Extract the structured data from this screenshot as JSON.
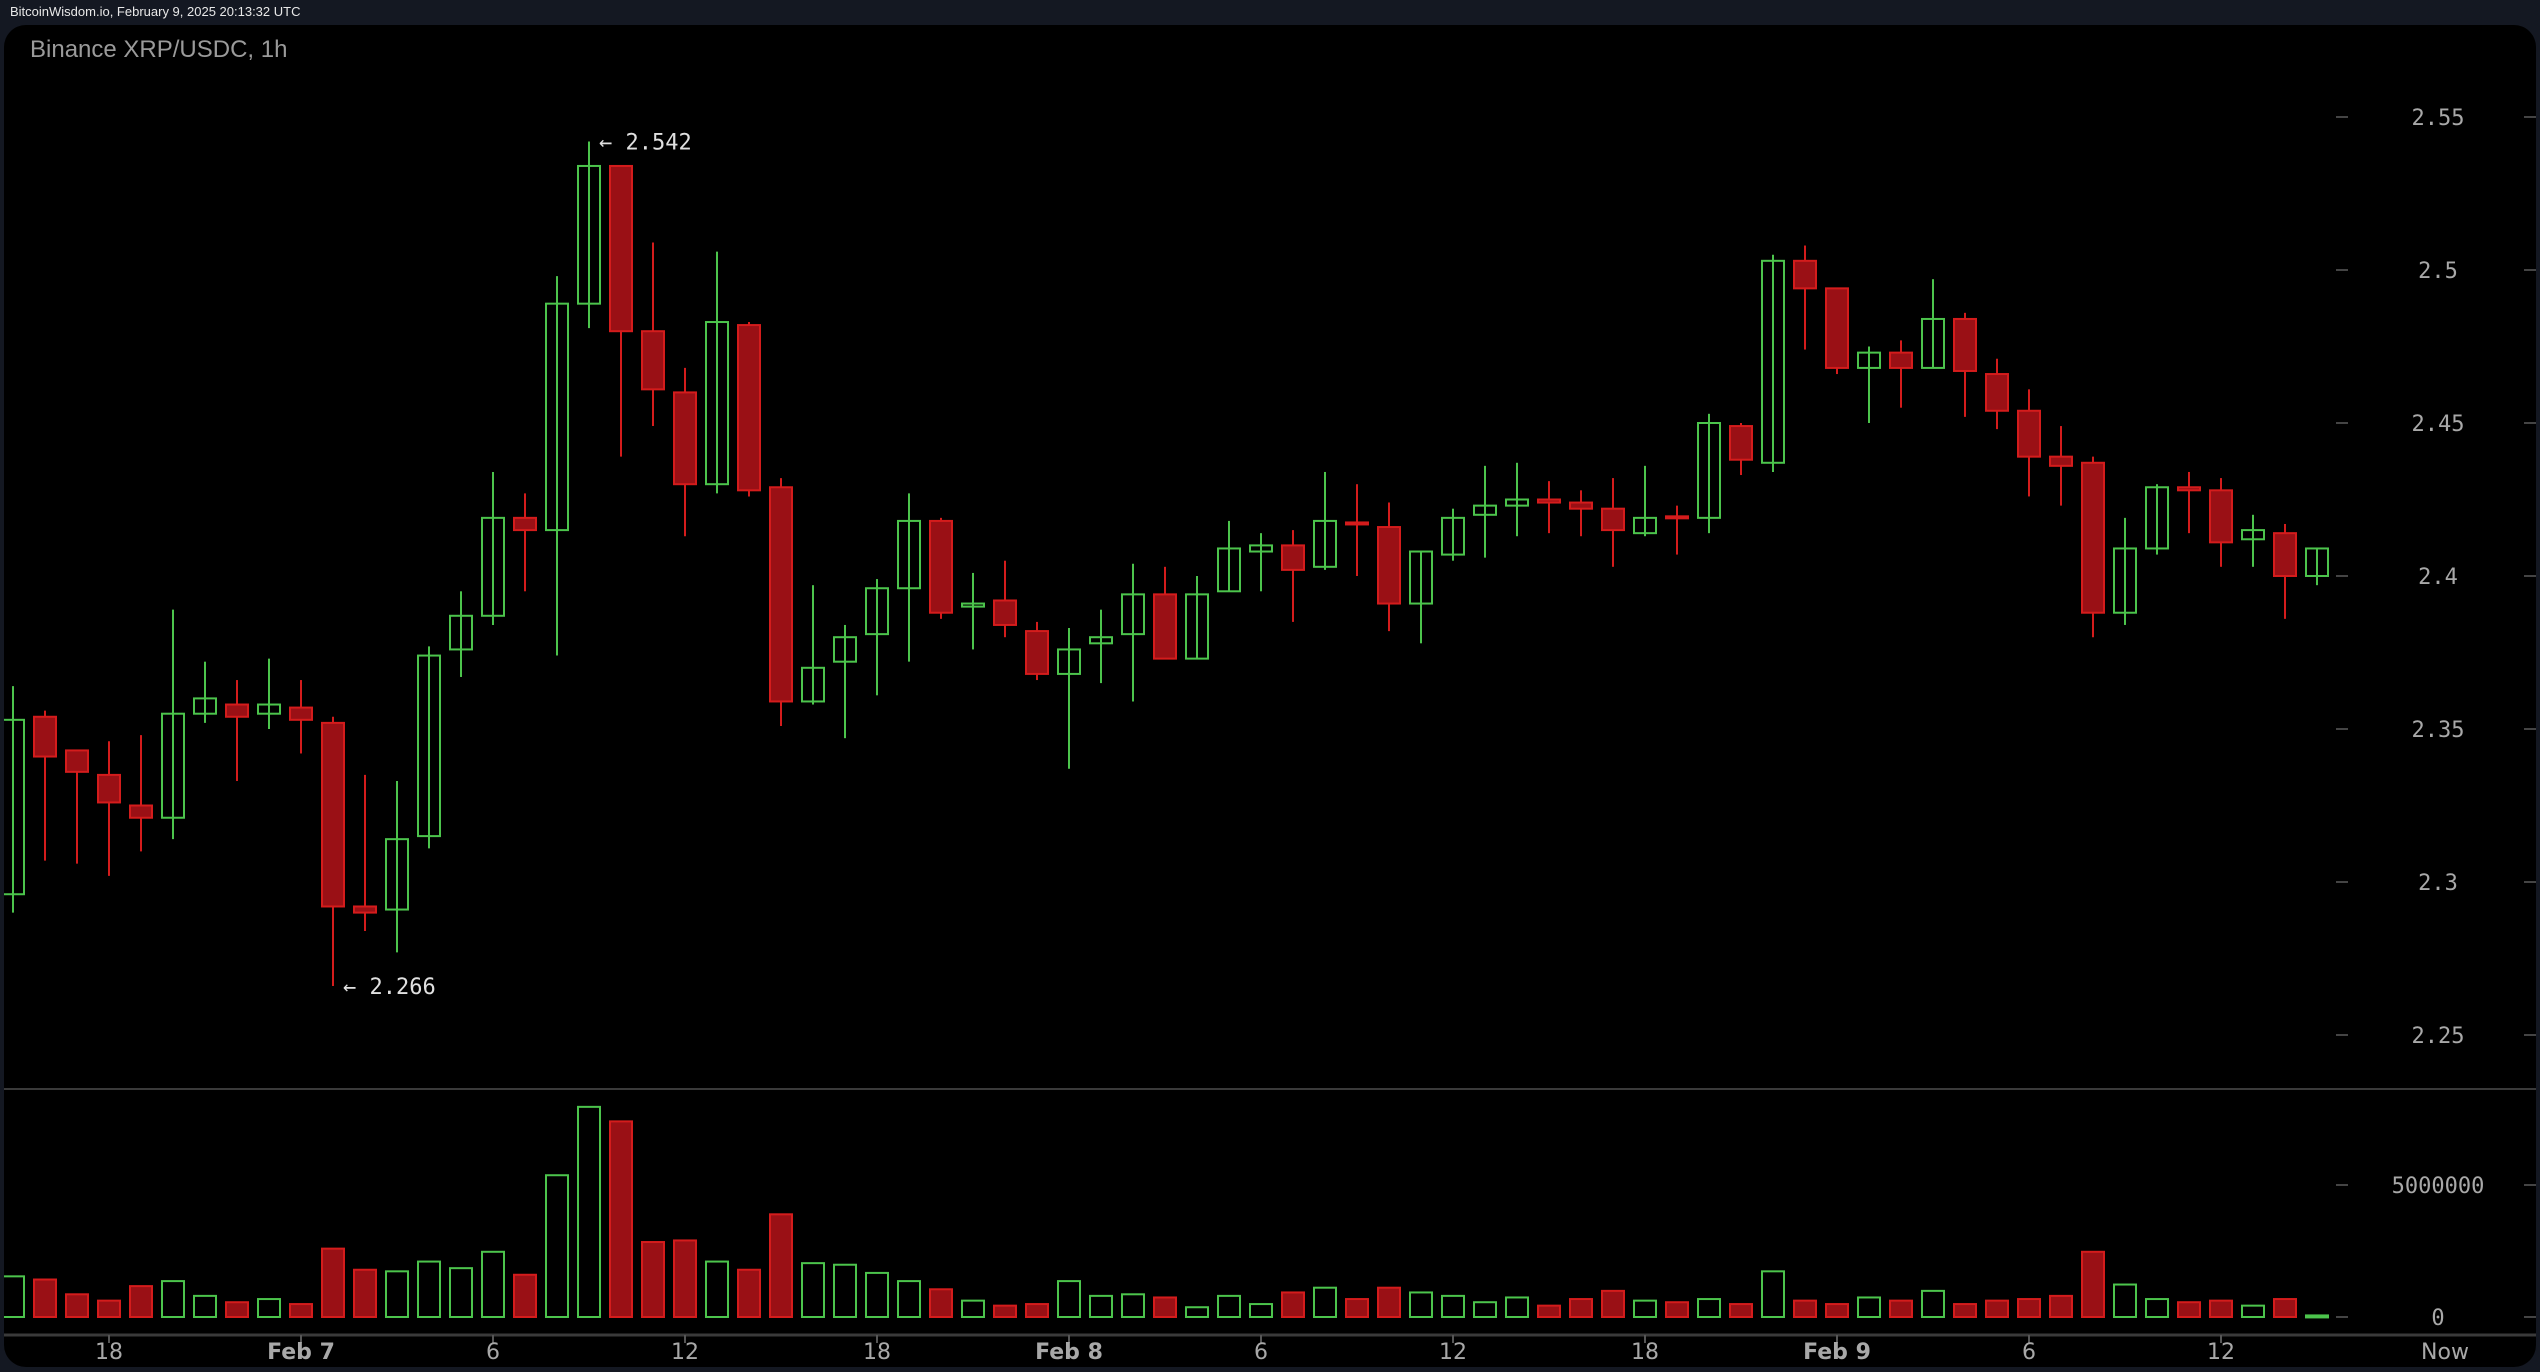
{
  "header": {
    "source_line": "BitcoinWisdom.io, February 9, 2025 20:13:32 UTC"
  },
  "chart": {
    "title": "Binance XRP/USDC, 1h"
  },
  "colors": {
    "up": "#4cc44c",
    "down_fill": "#9a1015",
    "down_border": "#d41c1c",
    "axis_text": "#a8a8a8",
    "background": "#000000",
    "frame": "#141822"
  },
  "chart_data": {
    "type": "candlestick",
    "title": "Binance XRP/USDC, 1h",
    "xlabel": "",
    "ylabel": "",
    "ylim": [
      2.25,
      2.55
    ],
    "y_ticks": [
      "2.55",
      "2.5",
      "2.45",
      "2.4",
      "2.35",
      "2.3",
      "2.25"
    ],
    "volume_ticks": [
      "5000000",
      "0"
    ],
    "x_ticks": [
      {
        "label": "18",
        "index": 3,
        "bold": false
      },
      {
        "label": "Feb 7",
        "index": 9,
        "bold": true
      },
      {
        "label": "6",
        "index": 15,
        "bold": false
      },
      {
        "label": "12",
        "index": 21,
        "bold": false
      },
      {
        "label": "18",
        "index": 27,
        "bold": false
      },
      {
        "label": "Feb 8",
        "index": 33,
        "bold": true
      },
      {
        "label": "6",
        "index": 39,
        "bold": false
      },
      {
        "label": "12",
        "index": 45,
        "bold": false
      },
      {
        "label": "18",
        "index": 51,
        "bold": false
      },
      {
        "label": "Feb 9",
        "index": 57,
        "bold": true
      },
      {
        "label": "6",
        "index": 63,
        "bold": false
      },
      {
        "label": "12",
        "index": 69,
        "bold": false
      },
      {
        "label": "Now",
        "index": 76,
        "bold": false
      }
    ],
    "annotations": [
      {
        "text": "← 2.542",
        "index": 18,
        "price": 2.542,
        "position": "high"
      },
      {
        "text": "← 2.266",
        "index": 10,
        "price": 2.266,
        "position": "low"
      }
    ],
    "columns": [
      "open",
      "high",
      "low",
      "close",
      "volume"
    ],
    "candles": [
      [
        2.296,
        2.364,
        2.29,
        2.353,
        1540000
      ],
      [
        2.354,
        2.356,
        2.307,
        2.341,
        1420000
      ],
      [
        2.343,
        2.343,
        2.306,
        2.336,
        860000
      ],
      [
        2.335,
        2.346,
        2.302,
        2.326,
        620000
      ],
      [
        2.325,
        2.348,
        2.31,
        2.321,
        1170000
      ],
      [
        2.321,
        2.389,
        2.314,
        2.355,
        1360000
      ],
      [
        2.355,
        2.372,
        2.352,
        2.36,
        800000
      ],
      [
        2.358,
        2.366,
        2.333,
        2.354,
        560000
      ],
      [
        2.355,
        2.373,
        2.35,
        2.358,
        680000
      ],
      [
        2.357,
        2.366,
        2.342,
        2.353,
        490000
      ],
      [
        2.352,
        2.354,
        2.266,
        2.292,
        2590000
      ],
      [
        2.292,
        2.335,
        2.284,
        2.29,
        1790000
      ],
      [
        2.291,
        2.333,
        2.277,
        2.314,
        1730000
      ],
      [
        2.315,
        2.377,
        2.311,
        2.374,
        2100000
      ],
      [
        2.376,
        2.395,
        2.367,
        2.387,
        1850000
      ],
      [
        2.387,
        2.434,
        2.384,
        2.419,
        2470000
      ],
      [
        2.419,
        2.427,
        2.395,
        2.415,
        1600000
      ],
      [
        2.415,
        2.498,
        2.374,
        2.489,
        5370000
      ],
      [
        2.489,
        2.542,
        2.481,
        2.534,
        7960000
      ],
      [
        2.534,
        2.534,
        2.439,
        2.48,
        7410000
      ],
      [
        2.48,
        2.509,
        2.449,
        2.461,
        2840000
      ],
      [
        2.46,
        2.468,
        2.413,
        2.43,
        2900000
      ],
      [
        2.43,
        2.506,
        2.427,
        2.483,
        2100000
      ],
      [
        2.482,
        2.483,
        2.426,
        2.428,
        1790000
      ],
      [
        2.429,
        2.432,
        2.351,
        2.359,
        3890000
      ],
      [
        2.359,
        2.397,
        2.358,
        2.37,
        2040000
      ],
      [
        2.372,
        2.384,
        2.347,
        2.38,
        1980000
      ],
      [
        2.381,
        2.399,
        2.361,
        2.396,
        1670000
      ],
      [
        2.396,
        2.427,
        2.372,
        2.418,
        1360000
      ],
      [
        2.418,
        2.419,
        2.386,
        2.388,
        1050000
      ],
      [
        2.39,
        2.401,
        2.376,
        2.391,
        620000
      ],
      [
        2.392,
        2.405,
        2.38,
        2.384,
        430000
      ],
      [
        2.382,
        2.385,
        2.366,
        2.368,
        490000
      ],
      [
        2.368,
        2.383,
        2.337,
        2.376,
        1360000
      ],
      [
        2.378,
        2.389,
        2.365,
        2.38,
        800000
      ],
      [
        2.381,
        2.404,
        2.359,
        2.394,
        860000
      ],
      [
        2.394,
        2.403,
        2.373,
        2.373,
        740000
      ],
      [
        2.373,
        2.4,
        2.373,
        2.394,
        370000
      ],
      [
        2.395,
        2.418,
        2.395,
        2.409,
        800000
      ],
      [
        2.408,
        2.414,
        2.395,
        2.41,
        490000
      ],
      [
        2.41,
        2.415,
        2.385,
        2.402,
        930000
      ],
      [
        2.403,
        2.434,
        2.402,
        2.418,
        1110000
      ],
      [
        2.4175,
        2.43,
        2.4,
        2.417,
        680000
      ],
      [
        2.416,
        2.424,
        2.382,
        2.391,
        1110000
      ],
      [
        2.391,
        2.408,
        2.378,
        2.408,
        930000
      ],
      [
        2.407,
        2.422,
        2.405,
        2.419,
        800000
      ],
      [
        2.42,
        2.436,
        2.406,
        2.423,
        560000
      ],
      [
        2.423,
        2.437,
        2.413,
        2.425,
        740000
      ],
      [
        2.425,
        2.431,
        2.414,
        2.424,
        430000
      ],
      [
        2.424,
        2.428,
        2.413,
        2.422,
        680000
      ],
      [
        2.422,
        2.432,
        2.403,
        2.415,
        990000
      ],
      [
        2.414,
        2.436,
        2.413,
        2.419,
        620000
      ],
      [
        2.4195,
        2.423,
        2.407,
        2.419,
        560000
      ],
      [
        2.419,
        2.453,
        2.414,
        2.45,
        680000
      ],
      [
        2.449,
        2.45,
        2.433,
        2.438,
        490000
      ],
      [
        2.437,
        2.505,
        2.434,
        2.503,
        1730000
      ],
      [
        2.503,
        2.508,
        2.474,
        2.494,
        620000
      ],
      [
        2.494,
        2.494,
        2.466,
        2.468,
        490000
      ],
      [
        2.468,
        2.475,
        2.45,
        2.473,
        740000
      ],
      [
        2.473,
        2.477,
        2.455,
        2.468,
        620000
      ],
      [
        2.468,
        2.497,
        2.468,
        2.484,
        990000
      ],
      [
        2.484,
        2.486,
        2.452,
        2.467,
        490000
      ],
      [
        2.466,
        2.471,
        2.448,
        2.454,
        620000
      ],
      [
        2.454,
        2.461,
        2.426,
        2.439,
        680000
      ],
      [
        2.439,
        2.449,
        2.423,
        2.436,
        800000
      ],
      [
        2.437,
        2.439,
        2.38,
        2.388,
        2470000
      ],
      [
        2.388,
        2.419,
        2.384,
        2.409,
        1230000
      ],
      [
        2.409,
        2.43,
        2.407,
        2.429,
        680000
      ],
      [
        2.429,
        2.434,
        2.414,
        2.428,
        560000
      ],
      [
        2.428,
        2.432,
        2.403,
        2.411,
        620000
      ],
      [
        2.412,
        2.42,
        2.403,
        2.415,
        430000
      ],
      [
        2.414,
        2.417,
        2.386,
        2.4,
        680000
      ],
      [
        2.4,
        2.409,
        2.397,
        2.409,
        60000
      ]
    ]
  }
}
